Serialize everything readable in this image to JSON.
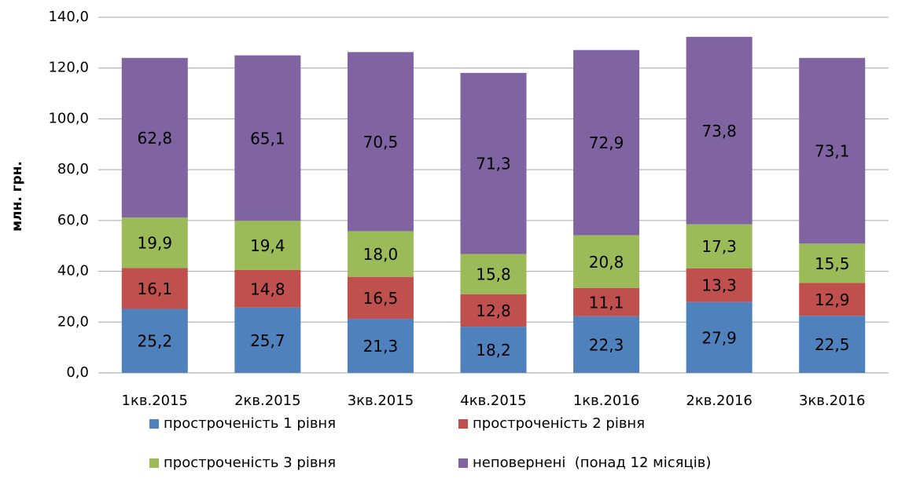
{
  "chart_data": {
    "type": "stacked_bar",
    "y_axis_label": "млн. грн.",
    "categories": [
      "1кв.2015",
      "2кв.2015",
      "3кв.2015",
      "4кв.2015",
      "1кв.2016",
      "2кв.2016",
      "3кв.2016"
    ],
    "series": [
      {
        "name": "простроченість 1 рівня",
        "color": "#4f81bd",
        "values": [
          25.2,
          25.7,
          21.3,
          18.2,
          22.3,
          27.9,
          22.5
        ],
        "value_labels": [
          "25,2",
          "25,7",
          "21,3",
          "18,2",
          "22,3",
          "27,9",
          "22,5"
        ]
      },
      {
        "name": "простроченість 2 рівня",
        "color": "#c0504d",
        "values": [
          16.1,
          14.8,
          16.5,
          12.8,
          11.1,
          13.3,
          12.9
        ],
        "value_labels": [
          "16,1",
          "14,8",
          "16,5",
          "12,8",
          "11,1",
          "13,3",
          "12,9"
        ]
      },
      {
        "name": "простроченість 3 рівня",
        "color": "#9bbb59",
        "values": [
          19.9,
          19.4,
          18.0,
          15.8,
          20.8,
          17.3,
          15.5
        ],
        "value_labels": [
          "19,9",
          "19,4",
          "18,0",
          "15,8",
          "20,8",
          "17,3",
          "15,5"
        ]
      },
      {
        "name": "неповернені  (понад 12 місяців)",
        "color": "#8064a2",
        "values": [
          62.8,
          65.1,
          70.5,
          71.3,
          72.9,
          73.8,
          73.1
        ],
        "value_labels": [
          "62,8",
          "65,1",
          "70,5",
          "71,3",
          "72,9",
          "73,8",
          "73,1"
        ]
      }
    ],
    "ylim": [
      0,
      140
    ],
    "yticks": [
      {
        "value": 0,
        "label": "0,0"
      },
      {
        "value": 20,
        "label": "20,0"
      },
      {
        "value": 40,
        "label": "40,0"
      },
      {
        "value": 60,
        "label": "60,0"
      },
      {
        "value": 80,
        "label": "80,0"
      },
      {
        "value": 100,
        "label": "100,0"
      },
      {
        "value": 120,
        "label": "120,0"
      },
      {
        "value": 140,
        "label": "140,0"
      }
    ],
    "grid": true
  }
}
